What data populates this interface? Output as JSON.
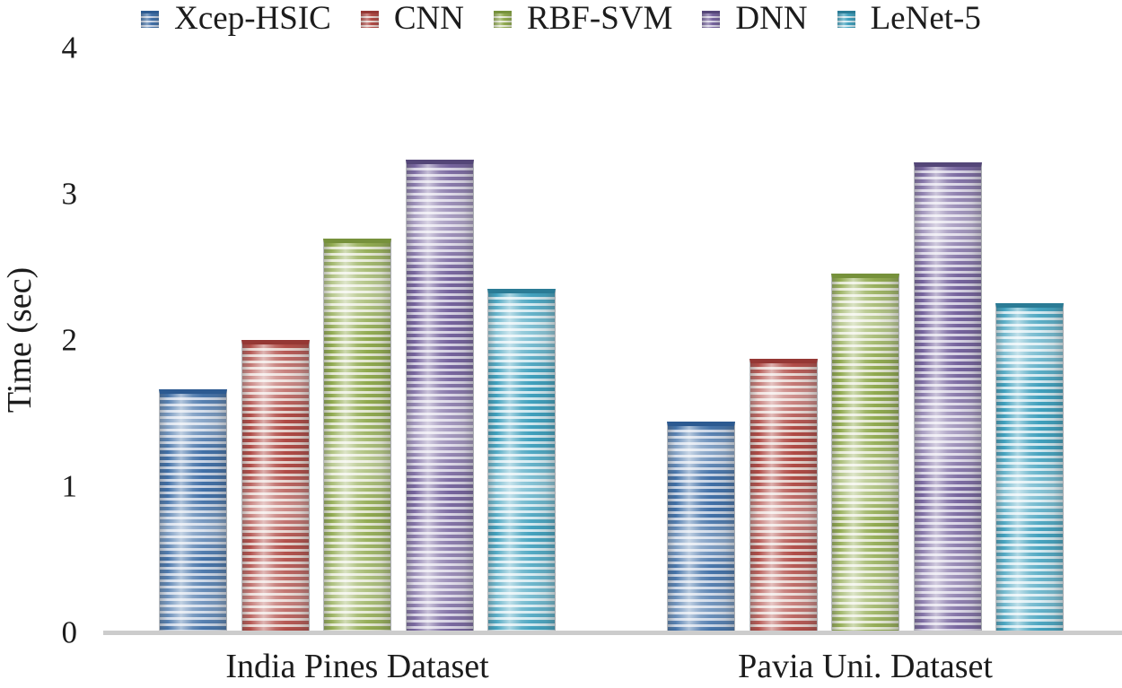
{
  "chart_data": {
    "type": "bar",
    "title": "",
    "xlabel": "",
    "ylabel": "Time (sec)",
    "ylim": [
      0,
      4
    ],
    "yticks": [
      0,
      1,
      2,
      3,
      4
    ],
    "grid": false,
    "legend_position": "top",
    "categories": [
      "India Pines Dataset",
      "Pavia Uni. Dataset"
    ],
    "series": [
      {
        "name": "Xcep-HSIC",
        "values": [
          1.65,
          1.43
        ],
        "color": "#4170a7",
        "color_light": "#c7d3e5",
        "color_top": "#2c5a91"
      },
      {
        "name": "CNN",
        "values": [
          1.99,
          1.86
        ],
        "color": "#b04a45",
        "color_light": "#e7d2cd",
        "color_top": "#953734"
      },
      {
        "name": "RBF-SVM",
        "values": [
          2.68,
          2.44
        ],
        "color": "#90aa4f",
        "color_light": "#e4e8d2",
        "color_top": "#76913b"
      },
      {
        "name": "DNN",
        "values": [
          3.22,
          3.2
        ],
        "color": "#75639d",
        "color_light": "#d6d1e4",
        "color_top": "#544678"
      },
      {
        "name": "LeNet-5",
        "values": [
          2.34,
          2.24
        ],
        "color": "#3fa0bd",
        "color_light": "#cfe8f0",
        "color_top": "#2a7b95"
      }
    ],
    "axis_line_color": "#cccccc"
  }
}
